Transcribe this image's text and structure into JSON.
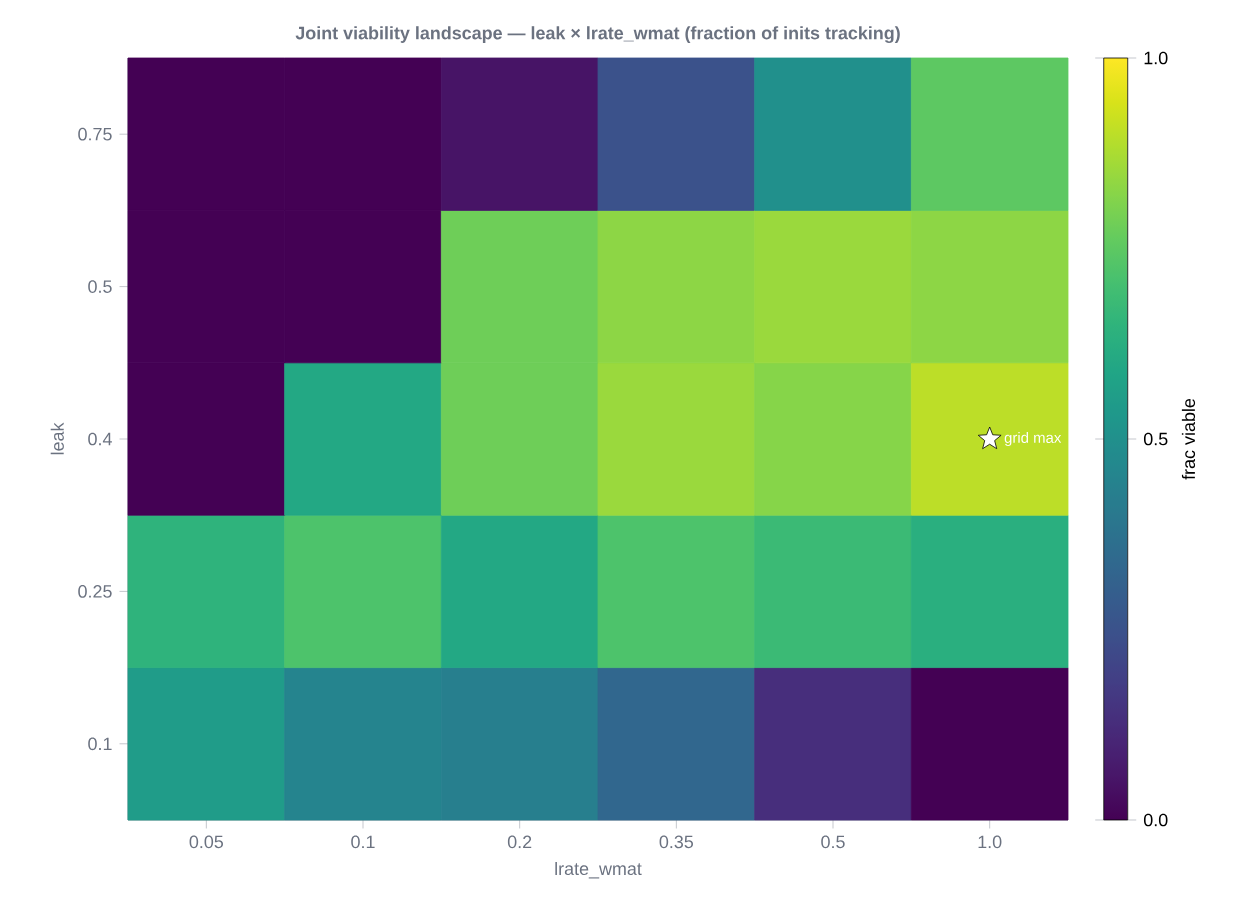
{
  "chart_data": {
    "type": "heatmap",
    "title": "Joint viability landscape — leak × lrate_wmat  (fraction of inits tracking)",
    "xlabel": "lrate_wmat",
    "ylabel": "leak",
    "clabel": "frac viable",
    "categories": [
      "0.05",
      "0.1",
      "0.2",
      "0.35",
      "0.5",
      "1.0"
    ],
    "y_categories": [
      "0.75",
      "0.5",
      "0.4",
      "0.25",
      "0.1"
    ],
    "cells": [
      [
        0,
        0,
        0.05,
        0.25,
        0.5,
        0.75
      ],
      [
        0,
        0,
        0.78,
        0.83,
        0.85,
        0.83
      ],
      [
        0,
        0.6,
        0.78,
        0.85,
        0.82,
        0.9
      ],
      [
        0.65,
        0.72,
        0.6,
        0.72,
        0.68,
        0.63
      ],
      [
        0.55,
        0.45,
        0.43,
        0.33,
        0.13,
        0
      ]
    ],
    "clim": [
      0,
      1
    ],
    "cticks": [
      {
        "value": 0,
        "label": "0.0"
      },
      {
        "value": 0.5,
        "label": "0.5"
      },
      {
        "value": 1,
        "label": "1.0"
      }
    ],
    "annotations": [
      {
        "text": "grid max",
        "x": "1.0",
        "y": "0.4"
      }
    ]
  }
}
